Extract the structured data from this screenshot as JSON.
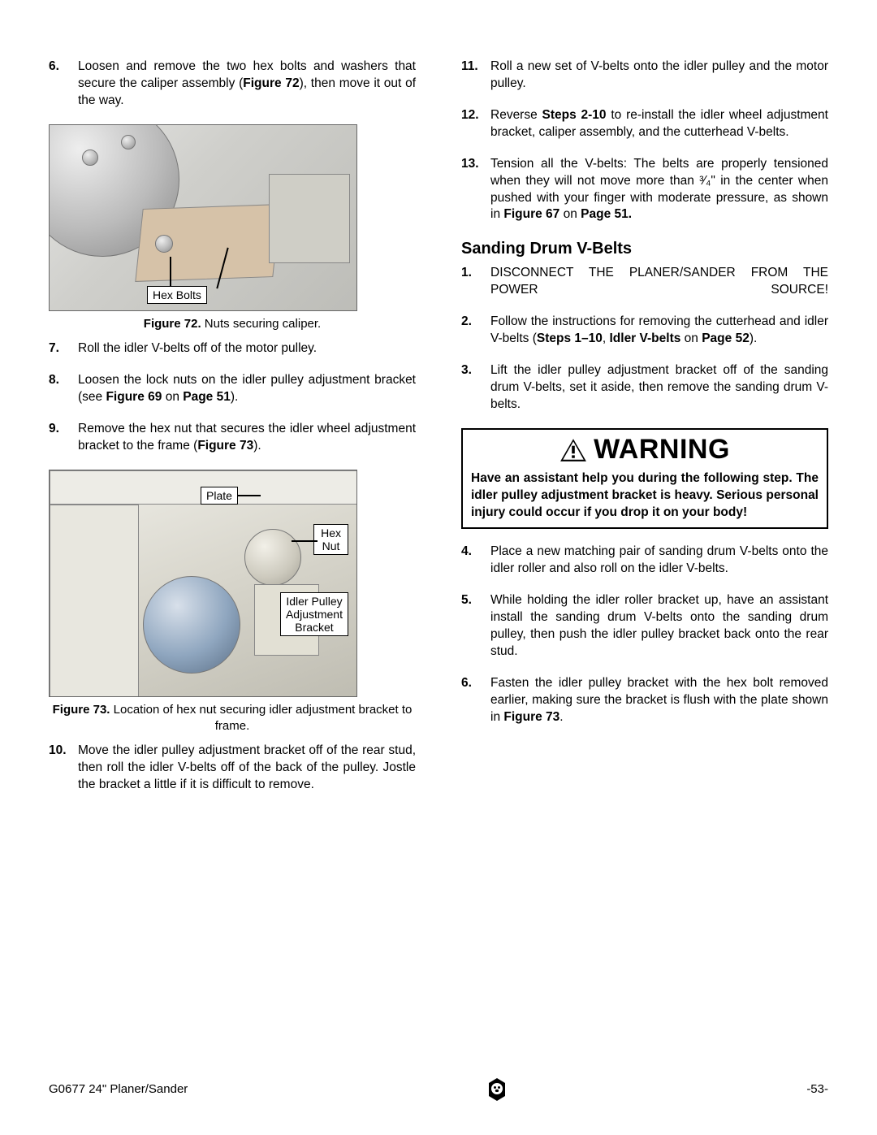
{
  "left": {
    "steps_a": [
      {
        "n": "6.",
        "html": "Loosen and remove the two hex bolts and washers that secure the caliper assembly (<span class='bold'>Figure 72</span>), then move it out of the way."
      },
      {
        "n": "7.",
        "html": "Roll the idler V-belts off of the motor pulley."
      },
      {
        "n": "8.",
        "html": "Loosen the lock nuts on the idler pulley adjustment bracket (see <span class='bold'>Figure 69</span> on <span class='bold'>Page 51</span>)."
      },
      {
        "n": "9.",
        "html": "Remove the hex nut that secures the idler wheel adjustment bracket to the frame (<span class='bold'>Figure 73</span>)."
      },
      {
        "n": "10.",
        "html": "Move the idler pulley adjustment bracket off of the rear stud, then roll the idler V-belts off of the back of the pulley. Jostle the bracket a little if it is difficult to remove."
      }
    ],
    "fig72": {
      "label_hexbolts": "Hex Bolts",
      "caption_prefix": "Figure 72.",
      "caption": " Nuts securing caliper."
    },
    "fig73": {
      "label_plate": "Plate",
      "label_hexnut_l1": "Hex",
      "label_hexnut_l2": "Nut",
      "label_bracket_l1": "Idler Pulley",
      "label_bracket_l2": "Adjustment",
      "label_bracket_l3": "Bracket",
      "caption_prefix": "Figure 73.",
      "caption": " Location of hex nut securing idler adjustment bracket to frame."
    }
  },
  "right": {
    "steps_top": [
      {
        "n": "11.",
        "html": "Roll a new set of V-belts onto the idler pulley and the motor pulley."
      },
      {
        "n": "12.",
        "html": "Reverse <span class='bold'>Steps 2-10</span> to re-install the idler wheel adjustment bracket, caliper assembly, and the cutterhead V-belts."
      },
      {
        "n": "13.",
        "html": "Tension all the V-belts: The belts are properly tensioned when they will not move more than ³⁄₄\" in the center when pushed with your finger with moderate pressure, as shown in <span class='bold'>Figure 67</span> on <span class='bold'>Page 51.</span>"
      }
    ],
    "heading": "Sanding Drum V-Belts",
    "steps_mid": [
      {
        "n": "1.",
        "html": "DISCONNECT THE PLANER/SANDER FROM THE POWER SOURCE!"
      },
      {
        "n": "2.",
        "html": "Follow the instructions for removing the cutterhead and idler V-belts (<span class='bold'>Steps 1–10</span>, <span class='bold'>Idler V-belts</span> on <span class='bold'>Page 52</span>)."
      },
      {
        "n": "3.",
        "html": "Lift the idler pulley adjustment bracket off of the sanding drum V-belts, set it aside, then remove the sanding drum V-belts."
      }
    ],
    "warning": {
      "title": "WARNING",
      "body": "Have an assistant help you during the following step. The idler pulley adjustment bracket is heavy. Serious personal injury could occur if you drop it on your body!"
    },
    "steps_bottom": [
      {
        "n": "4.",
        "html": "Place a new matching pair of sanding drum V-belts onto the idler roller and also roll on the idler V-belts."
      },
      {
        "n": "5.",
        "html": "While holding the idler roller bracket up, have an assistant install the sanding drum V-belts onto the sanding drum pulley, then push the idler pulley bracket back onto the rear stud."
      },
      {
        "n": "6.",
        "html": "Fasten the idler pulley bracket with the hex bolt removed earlier, making sure the bracket is flush with the plate shown in <span class='bold'>Figure 73</span>."
      }
    ]
  },
  "footer": {
    "left": "G0677 24\" Planer/Sander",
    "right": "-53-"
  }
}
